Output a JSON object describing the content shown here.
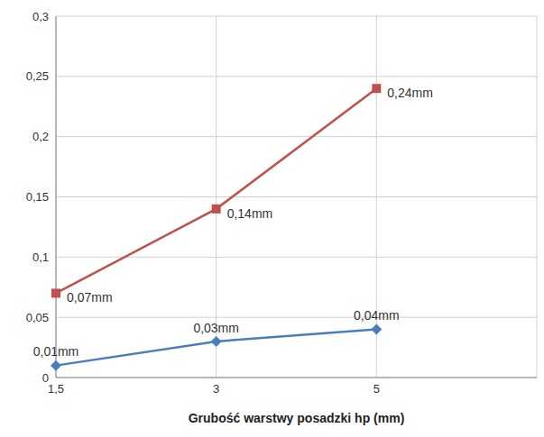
{
  "chart_data": {
    "type": "line",
    "x_label": "Grubość warstwy posadzki hp (mm)",
    "categories": [
      "1,5",
      "3",
      "5",
      null
    ],
    "series": [
      {
        "color": "#c0504d",
        "marker": "square",
        "values": [
          0.07,
          0.14,
          0.24,
          null
        ],
        "value_labels": [
          "0,07mm",
          "0,14mm",
          "0,24mm",
          null
        ]
      },
      {
        "color": "#4a7ebb",
        "marker": "diamond",
        "values": [
          0.01,
          0.03,
          0.04,
          null
        ],
        "value_labels": [
          "0,01mm",
          "0,03mm",
          "0,04mm",
          null
        ]
      }
    ],
    "ylim": [
      0,
      0.3
    ],
    "yticks": [
      0,
      {
        "value": 0.05,
        "label": "0,05"
      },
      {
        "value": 0.1,
        "label": "0,1"
      },
      {
        "value": 0.15,
        "label": "0,15"
      },
      {
        "value": 0.2,
        "label": "0,2"
      },
      {
        "value": 0.25,
        "label": "0,25"
      },
      {
        "value": 0.3,
        "label": "0,3"
      }
    ],
    "grid": true,
    "data_labels": true
  }
}
